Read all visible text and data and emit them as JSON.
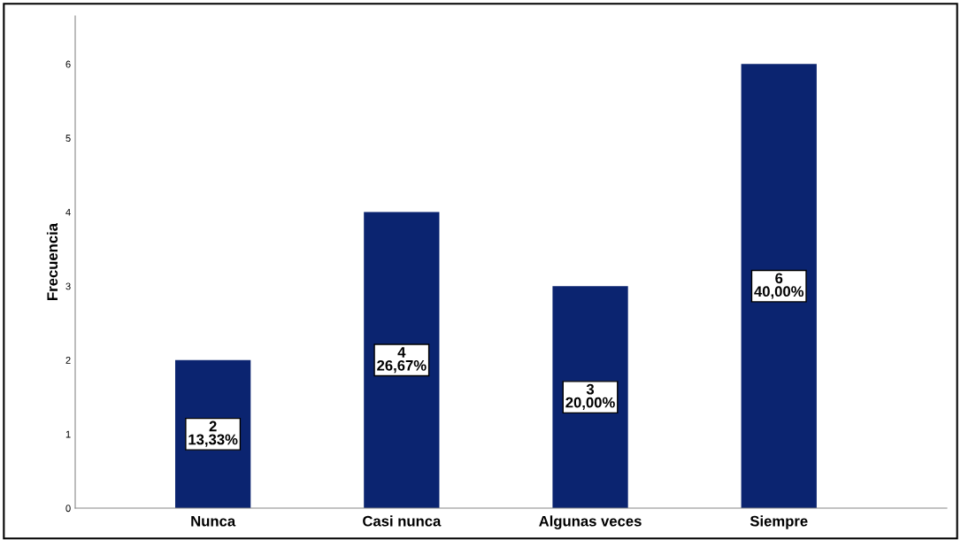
{
  "chart_data": {
    "type": "bar",
    "ylabel": "Frecuencia",
    "categories": [
      "Nunca",
      "Casi nunca",
      "Algunas veces",
      "Siempre"
    ],
    "values": [
      2,
      4,
      3,
      6
    ],
    "value_labels": [
      "2\n13,33%",
      "4\n26,67%",
      "3\n20,00%",
      "6\n40,00%"
    ],
    "color": "#0b2470",
    "ylim": [
      0,
      6.65
    ],
    "yticks": [
      0,
      1,
      2,
      3,
      4,
      5,
      6
    ],
    "grid": false,
    "legend": false
  }
}
